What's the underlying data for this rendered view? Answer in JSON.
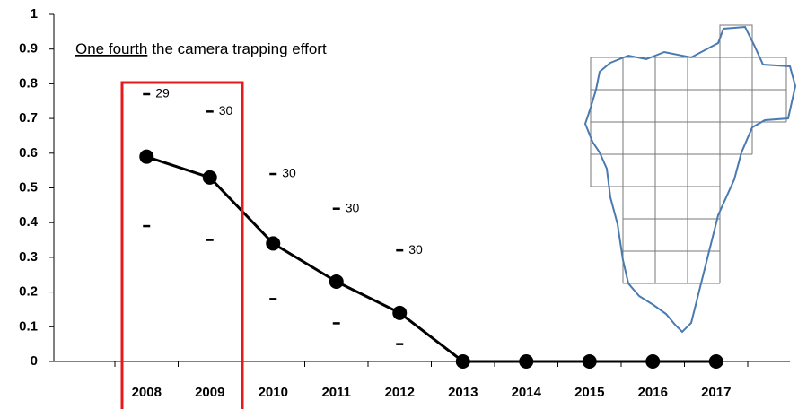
{
  "chart_data": {
    "type": "line",
    "annotation": [
      "One fourth",
      "the camera trapping effort"
    ],
    "categories": [
      "2008",
      "2009",
      "2010",
      "2011",
      "2012",
      "2013",
      "2014",
      "2015",
      "2016",
      "2017"
    ],
    "values": [
      0.59,
      0.53,
      0.34,
      0.23,
      0.14,
      0,
      0,
      0,
      0,
      0
    ],
    "upper": [
      0.77,
      0.72,
      0.54,
      0.44,
      0.32,
      null,
      null,
      null,
      null,
      null
    ],
    "lower": [
      0.39,
      0.35,
      0.18,
      0.11,
      0.05,
      null,
      null,
      null,
      null,
      null
    ],
    "sample_sizes": [
      29,
      30,
      30,
      30,
      30,
      null,
      null,
      null,
      null,
      null
    ],
    "color": "#000000",
    "highlight_color": "#e8191b",
    "ylim": [
      0,
      1
    ],
    "yticks": [
      0,
      0.1,
      0.2,
      0.3,
      0.4,
      0.5,
      0.6,
      0.7,
      0.8,
      0.9,
      1
    ]
  }
}
